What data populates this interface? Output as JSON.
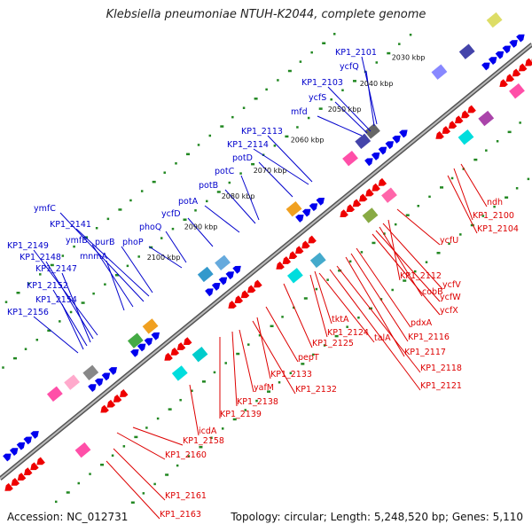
{
  "title": "Klebsiella pneumoniae NTUH-K2044, complete genome",
  "footer": {
    "accession": "Accession: NC_012731",
    "summary": "Topology: circular; Length: 5,248,520 bp; Genes: 5,110"
  },
  "colors": {
    "forward_label": "#0000cc",
    "reverse_label": "#dd0000",
    "forward_feature": "#0000ee",
    "reverse_feature": "#ee0000",
    "backbone": "#888888",
    "gc_dots": "#228822"
  },
  "ruler_ticks": [
    "2030 kbp",
    "2040 kbp",
    "2050 kbp",
    "2060 kbp",
    "2070 kbp",
    "2080 kbp",
    "2090 kbp",
    "2100 kbp"
  ],
  "forward_labels": [
    "KP1_2101",
    "ycfQ",
    "KP1_2103",
    "ycfS",
    "mfd",
    "KP1_2113",
    "KP1_2114",
    "potD",
    "potC",
    "potB",
    "potA",
    "ycfD",
    "phoQ",
    "phoP",
    "purB",
    "KP1_2141",
    "ymfC",
    "ymfB",
    "mnmA",
    "KP1_2149",
    "KP1_2148",
    "KP1_2147",
    "KP1_2152",
    "KP1_2154",
    "KP1_2156"
  ],
  "reverse_labels": [
    "ndh",
    "KP1_2100",
    "KP1_2104",
    "ycfU",
    "KP1_2112",
    "ycfV",
    "cobB",
    "ycfW",
    "ycfX",
    "pdxA",
    "KP1_2116",
    "KP1_2117",
    "tktA",
    "talA",
    "KP1_2118",
    "KP1_2124",
    "KP1_2121",
    "KP1_2125",
    "pepT",
    "KP1_2133",
    "KP1_2132",
    "yafM",
    "KP1_2138",
    "KP1_2139",
    "icdA",
    "KP1_2158",
    "KP1_2160",
    "KP1_2161",
    "KP1_2163"
  ]
}
